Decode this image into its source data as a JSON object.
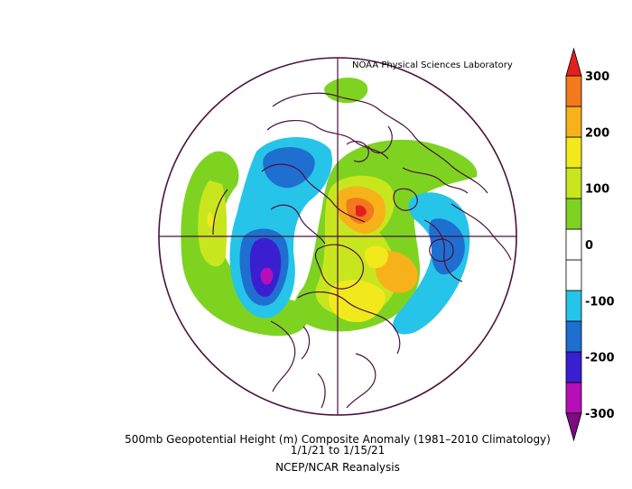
{
  "credit": "NOAA Physical Sciences Laboratory",
  "caption": {
    "line1": "500mb Geopotential Height (m) Composite Anomaly (1981–2010 Climatology)",
    "line2": "1/1/21   to 1/15/21",
    "line3": "NCEP/NCAR Reanalysis"
  },
  "colorbar": {
    "ticks": [
      "300",
      "200",
      "100",
      "0",
      "-100",
      "-200",
      "-300"
    ],
    "colors": [
      "#7b0d80",
      "#b70fb7",
      "#3a1fd0",
      "#1f6fd0",
      "#26c4e8",
      "#ffffff",
      "#ffffff",
      "#7ed321",
      "#c8e61e",
      "#f2e91c",
      "#f7b21b",
      "#f27a1c",
      "#e4201f"
    ]
  },
  "map": {
    "projection": "north-polar-stereographic",
    "field": "500mb geopotential height anomaly (m)",
    "contour_interval_m": 50,
    "colors": {
      "border": "#4a1040",
      "neg_strong": "#3a1fd0",
      "neg_medium": "#1f6fd0",
      "neg_weak": "#26c4e8",
      "neg_extreme": "#b70fb7",
      "pos_weak": "#7ed321",
      "pos_medium": "#c8e61e",
      "pos_strong": "#f2e91c",
      "pos_higher": "#f7b21b",
      "pos_peak": "#f27a1c",
      "pos_extreme": "#e4201f"
    }
  }
}
